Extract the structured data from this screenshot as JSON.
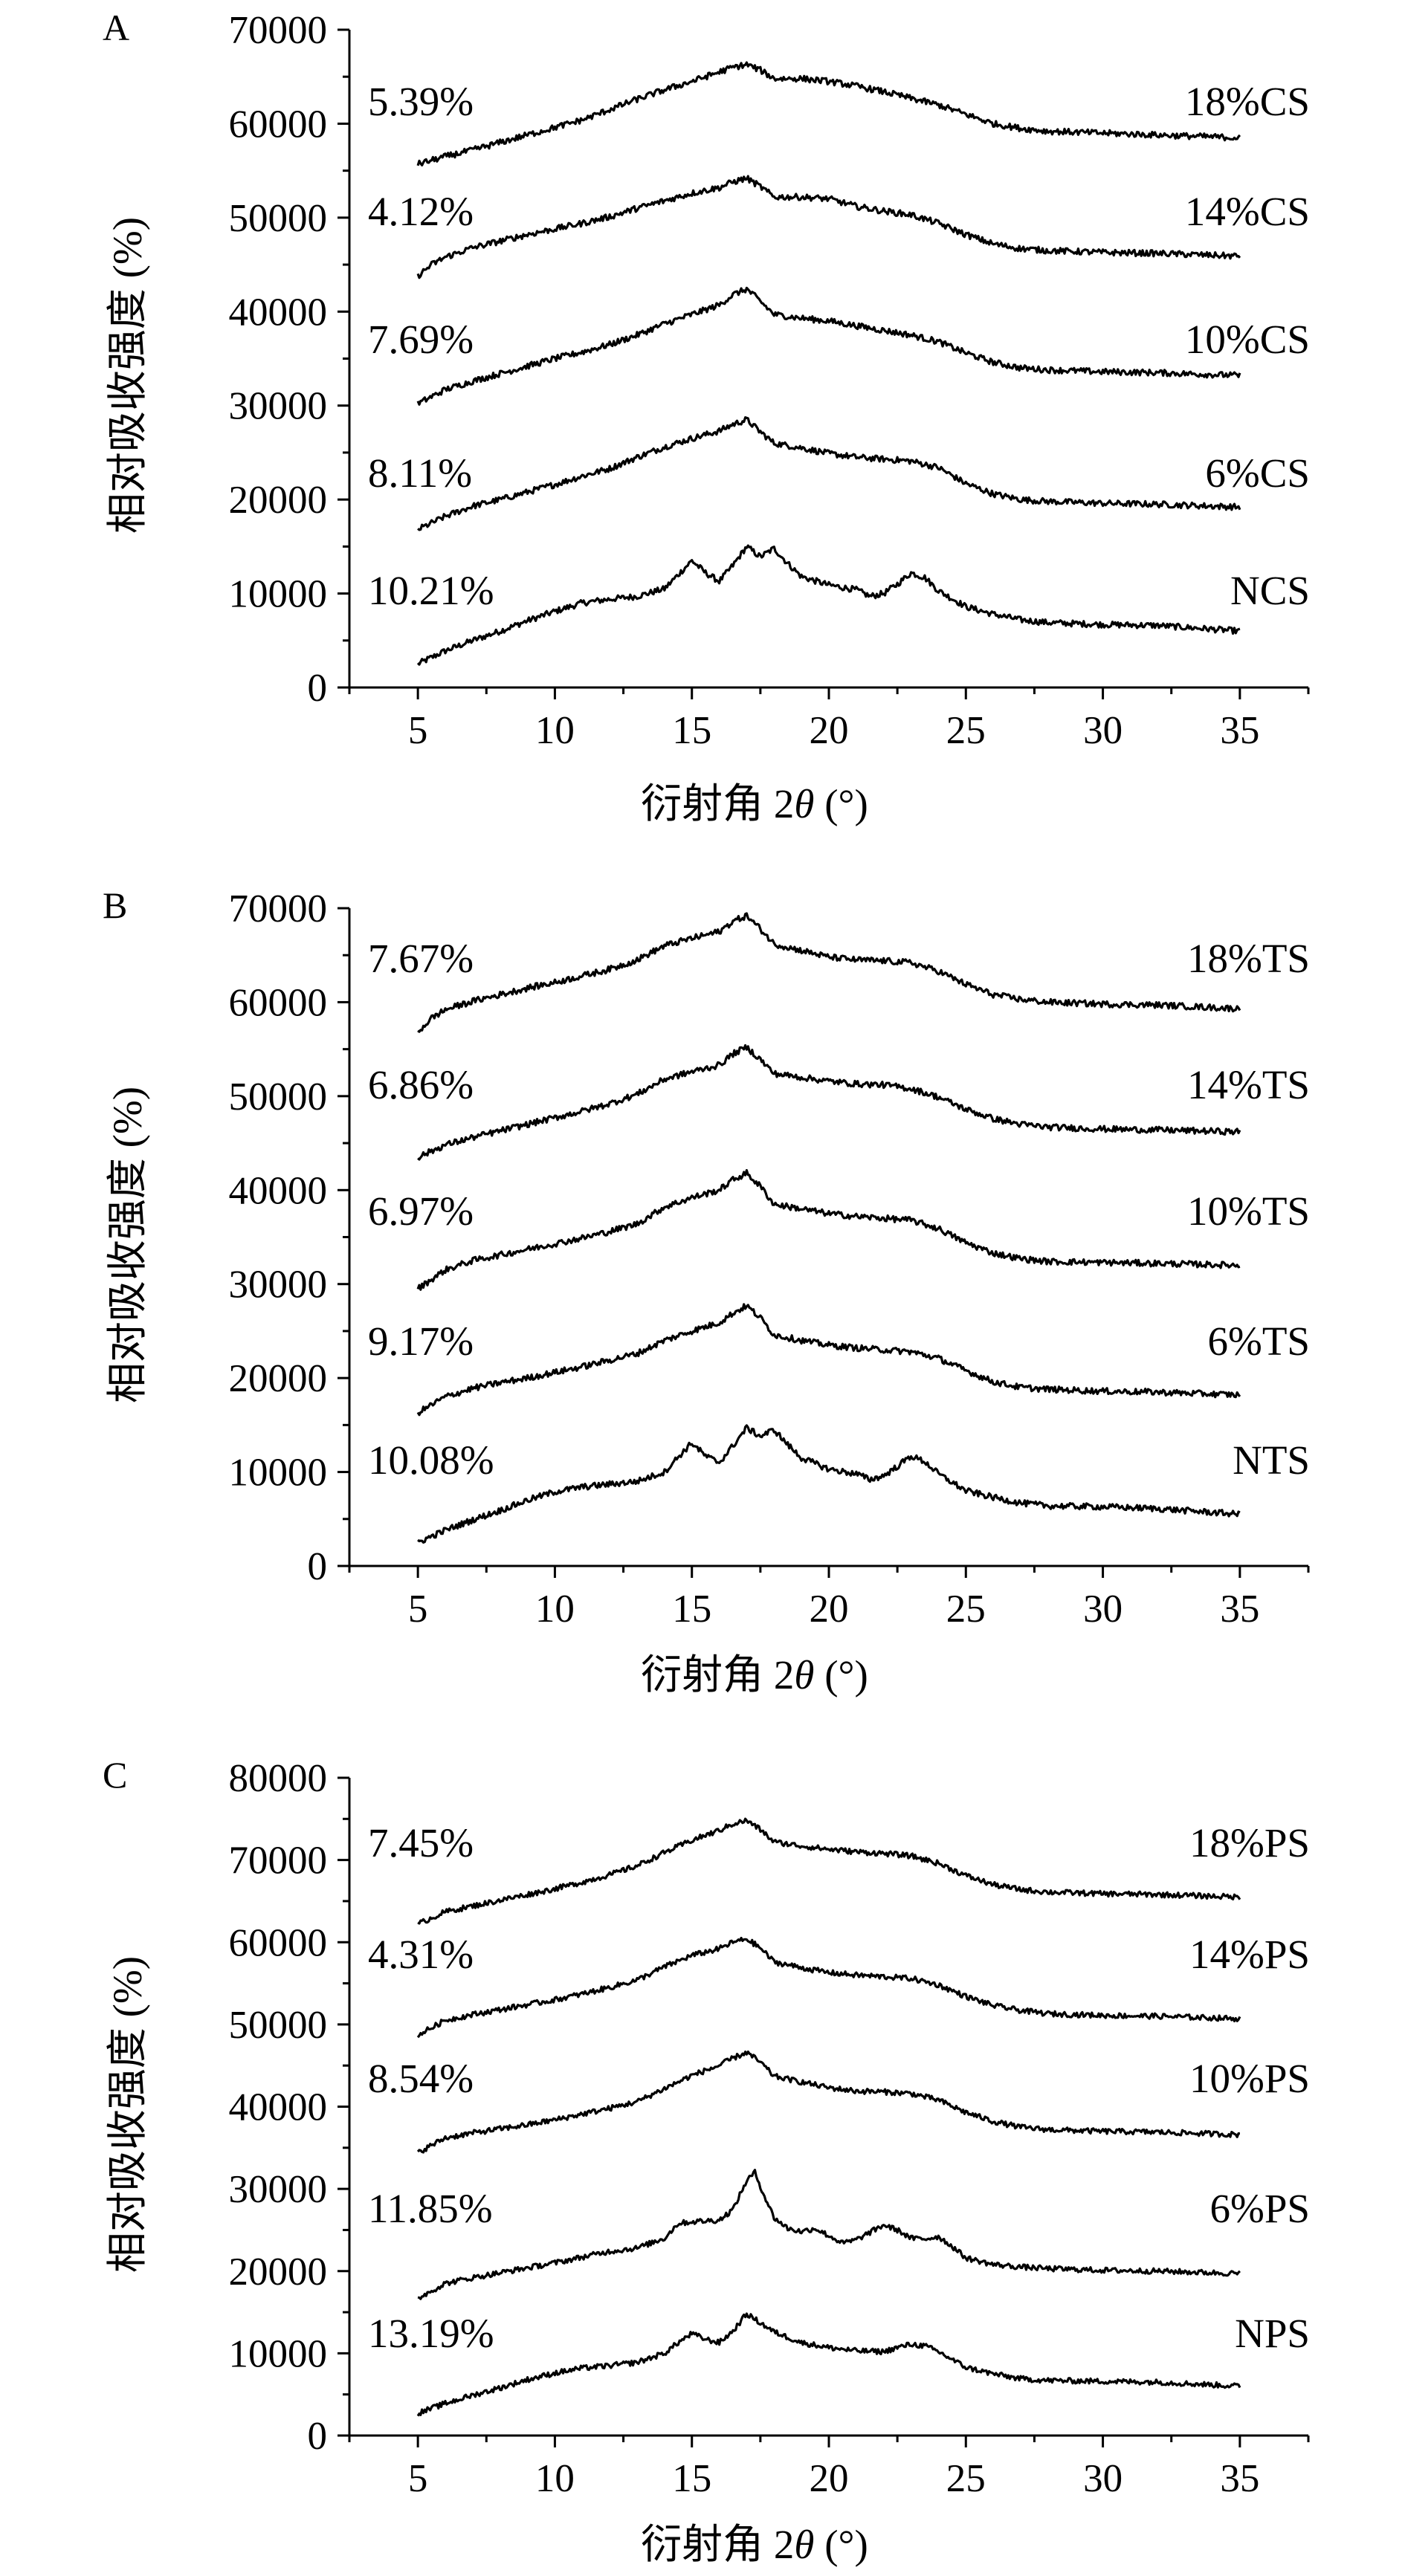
{
  "chart_data": [
    {
      "type": "line",
      "panel_label": "A",
      "xlabel": "衍射角 2θ (°)",
      "ylabel": "相对吸收强度 (%)",
      "xlim": [
        2.5,
        37.5
      ],
      "ylim": [
        0,
        70000
      ],
      "x_ticks": [
        5,
        10,
        15,
        20,
        25,
        30,
        35
      ],
      "y_ticks": [
        0,
        10000,
        20000,
        30000,
        40000,
        50000,
        60000,
        70000
      ],
      "grid": false,
      "series": [
        {
          "name": "NCS",
          "crystallinity": "10.21%",
          "x": [
            5,
            6,
            7,
            8,
            9,
            10,
            11,
            12,
            13,
            14,
            14.5,
            15,
            15.5,
            16,
            16.5,
            17,
            17.5,
            18,
            18.5,
            19,
            20,
            21,
            21.5,
            22,
            22.5,
            23,
            23.5,
            24,
            25,
            26,
            27,
            28,
            30,
            32,
            35
          ],
          "y": [
            2500,
            3900,
            5000,
            6000,
            7100,
            8100,
            9000,
            9400,
            9700,
            10500,
            12000,
            13500,
            12200,
            11300,
            13000,
            15000,
            13900,
            14800,
            13200,
            11800,
            10900,
            10400,
            9700,
            10000,
            11000,
            12200,
            11700,
            10300,
            8600,
            7800,
            7200,
            6900,
            6700,
            6600,
            6000
          ]
        },
        {
          "name": "6%CS",
          "crystallinity": "8.11%",
          "x": [
            5,
            6,
            7,
            8,
            9,
            10,
            11,
            12,
            13,
            14,
            15,
            16,
            16.5,
            17,
            17.5,
            18,
            19,
            20,
            21,
            22,
            23,
            24,
            25,
            26,
            27,
            28,
            30,
            32,
            35
          ],
          "y": [
            16800,
            18200,
            19300,
            20000,
            20800,
            21600,
            22500,
            23300,
            24500,
            25600,
            26500,
            27300,
            28000,
            28500,
            27200,
            26000,
            25500,
            24900,
            24500,
            24300,
            24100,
            23400,
            21700,
            20600,
            20000,
            19800,
            19600,
            19500,
            19200
          ]
        },
        {
          "name": "10%CS",
          "crystallinity": "7.69%",
          "x": [
            5,
            6,
            7,
            8,
            9,
            10,
            11,
            12,
            13,
            14,
            15,
            16,
            16.5,
            17,
            17.5,
            18,
            19,
            20,
            21,
            22,
            23,
            24,
            25,
            26,
            27,
            28,
            30,
            32,
            35
          ],
          "y": [
            30200,
            31700,
            32600,
            33400,
            34200,
            35000,
            35700,
            36500,
            37500,
            38700,
            39700,
            40700,
            41800,
            42400,
            41100,
            39700,
            39300,
            39000,
            38500,
            38000,
            37500,
            36800,
            35600,
            34600,
            34000,
            33800,
            33600,
            33500,
            33200
          ]
        },
        {
          "name": "14%CS",
          "crystallinity": "4.12%",
          "x": [
            5,
            5.5,
            6,
            7,
            8,
            9,
            10,
            11,
            12,
            13,
            14,
            15,
            16,
            16.5,
            17,
            17.5,
            18,
            19,
            20,
            21,
            22,
            23,
            24,
            25,
            26,
            27,
            28,
            30,
            32,
            35
          ],
          "y": [
            43800,
            45000,
            45800,
            46800,
            47500,
            48200,
            48800,
            49400,
            50100,
            51000,
            51800,
            52600,
            53200,
            53800,
            54200,
            53300,
            52200,
            52200,
            52000,
            51200,
            50700,
            50300,
            49400,
            48200,
            47200,
            46700,
            46500,
            46300,
            46200,
            45900
          ]
        },
        {
          "name": "18%CS",
          "crystallinity": "5.39%",
          "x": [
            5,
            6,
            7,
            8,
            9,
            10,
            11,
            12,
            13,
            14,
            15,
            16,
            16.5,
            17,
            17.5,
            18,
            19,
            20,
            21,
            22,
            23,
            24,
            25,
            26,
            27,
            28,
            30,
            32,
            35
          ],
          "y": [
            55700,
            56500,
            57200,
            58000,
            58800,
            59600,
            60400,
            61500,
            62600,
            63600,
            64500,
            65500,
            66000,
            66300,
            65700,
            64800,
            64800,
            64500,
            64000,
            63400,
            62700,
            62000,
            61000,
            60000,
            59500,
            59200,
            59000,
            58800,
            58500
          ]
        }
      ]
    },
    {
      "type": "line",
      "panel_label": "B",
      "xlabel": "衍射角 2θ (°)",
      "ylabel": "相对吸收强度 (%)",
      "xlim": [
        2.5,
        37.5
      ],
      "ylim": [
        0,
        70000
      ],
      "x_ticks": [
        5,
        10,
        15,
        20,
        25,
        30,
        35
      ],
      "y_ticks": [
        0,
        10000,
        20000,
        30000,
        40000,
        50000,
        60000,
        70000
      ],
      "grid": false,
      "series": [
        {
          "name": "NTS",
          "crystallinity": "10.08%",
          "x": [
            5,
            6,
            7,
            8,
            9,
            10,
            11,
            12,
            13,
            14,
            14.5,
            15,
            15.5,
            16,
            16.5,
            17,
            17.5,
            18,
            18.5,
            19,
            20,
            21,
            21.5,
            22,
            22.5,
            23,
            23.5,
            24,
            25,
            26,
            27,
            28,
            30,
            32,
            35
          ],
          "y": [
            2500,
            3800,
            4900,
            5900,
            7000,
            7900,
            8400,
            8700,
            9000,
            10000,
            11600,
            13100,
            11700,
            11000,
            12800,
            14700,
            13800,
            14500,
            12900,
            11500,
            10300,
            9800,
            9200,
            9600,
            10600,
            11700,
            11100,
            9800,
            8000,
            7300,
            6700,
            6400,
            6300,
            6100,
            5500
          ]
        },
        {
          "name": "6%TS",
          "crystallinity": "9.17%",
          "x": [
            5,
            6,
            7,
            8,
            9,
            10,
            11,
            12,
            13,
            14,
            15,
            16,
            16.5,
            17,
            17.5,
            18,
            19,
            20,
            21,
            22,
            23,
            24,
            25,
            26,
            27,
            28,
            30,
            32,
            35
          ],
          "y": [
            16300,
            18000,
            18900,
            19500,
            20000,
            20600,
            21200,
            21900,
            22600,
            24000,
            25000,
            25900,
            26900,
            27700,
            26400,
            24600,
            24000,
            23500,
            23200,
            23000,
            22800,
            22100,
            20800,
            19600,
            19000,
            18800,
            18600,
            18500,
            18200
          ]
        },
        {
          "name": "10%TS",
          "crystallinity": "6.97%",
          "x": [
            5,
            6,
            7,
            8,
            9,
            10,
            11,
            12,
            13,
            14,
            15,
            16,
            16.5,
            17,
            17.5,
            18,
            19,
            20,
            21,
            22,
            23,
            24,
            25,
            26,
            27,
            28,
            30,
            32,
            35
          ],
          "y": [
            29500,
            31500,
            32500,
            33100,
            33700,
            34300,
            34900,
            35600,
            36400,
            38200,
            39200,
            40000,
            41100,
            41800,
            40400,
            38500,
            38000,
            37500,
            37200,
            37000,
            36800,
            35900,
            34400,
            33300,
            32700,
            32400,
            32300,
            32200,
            32000
          ]
        },
        {
          "name": "14%TS",
          "crystallinity": "6.86%",
          "x": [
            5,
            6,
            7,
            8,
            9,
            10,
            11,
            12,
            13,
            14,
            15,
            16,
            16.5,
            17,
            17.5,
            18,
            19,
            20,
            21,
            22,
            23,
            24,
            25,
            26,
            27,
            28,
            30,
            32,
            35
          ],
          "y": [
            43500,
            44800,
            45600,
            46300,
            47000,
            47700,
            48400,
            49200,
            50200,
            51800,
            52600,
            53300,
            54500,
            55200,
            53900,
            52400,
            52000,
            51600,
            51300,
            51200,
            50800,
            49900,
            48600,
            47600,
            47000,
            46700,
            46500,
            46400,
            46200
          ]
        },
        {
          "name": "18%TS",
          "crystallinity": "7.67%",
          "x": [
            5,
            5.5,
            6,
            7,
            8,
            9,
            10,
            11,
            12,
            13,
            14,
            15,
            16,
            16.5,
            17,
            17.5,
            18,
            19,
            20,
            21,
            22,
            23,
            24,
            25,
            26,
            27,
            28,
            30,
            32,
            35
          ],
          "y": [
            56800,
            58300,
            59200,
            60100,
            60800,
            61500,
            62100,
            62800,
            63500,
            64500,
            66000,
            66800,
            67500,
            68600,
            69200,
            67800,
            66200,
            65500,
            64800,
            64500,
            64400,
            64200,
            63300,
            61900,
            60800,
            60300,
            60000,
            59800,
            59700,
            59300
          ]
        }
      ]
    },
    {
      "type": "line",
      "panel_label": "C",
      "xlabel": "衍射角 2θ (°)",
      "ylabel": "相对吸收强度 (%)",
      "xlim": [
        2.5,
        37.5
      ],
      "ylim": [
        0,
        80000
      ],
      "x_ticks": [
        5,
        10,
        15,
        20,
        25,
        30,
        35
      ],
      "y_ticks": [
        0,
        10000,
        20000,
        30000,
        40000,
        50000,
        60000,
        70000,
        80000
      ],
      "grid": false,
      "series": [
        {
          "name": "NPS",
          "crystallinity": "13.19%",
          "x": [
            5,
            6,
            7,
            8,
            9,
            10,
            11,
            12,
            13,
            14,
            14.5,
            15,
            15.5,
            16,
            16.5,
            17,
            17.5,
            18,
            19,
            20,
            21,
            22,
            22.5,
            23,
            23.5,
            24,
            25,
            26,
            27,
            28,
            30,
            32,
            35
          ],
          "y": [
            2700,
            3900,
            4900,
            5800,
            6800,
            7600,
            8200,
            8500,
            8900,
            10000,
            11300,
            12400,
            11700,
            11300,
            12700,
            14800,
            13700,
            12600,
            11300,
            10700,
            10300,
            10200,
            10700,
            11100,
            10900,
            10200,
            8300,
            7500,
            6900,
            6700,
            6600,
            6500,
            6000
          ]
        },
        {
          "name": "6%PS",
          "crystallinity": "11.85%",
          "x": [
            5,
            6,
            7,
            8,
            9,
            10,
            11,
            12,
            13,
            14,
            14.5,
            15,
            16,
            16.5,
            17,
            17.3,
            17.6,
            18,
            18.5,
            19,
            19.5,
            20,
            20.5,
            21,
            21.5,
            22,
            22.5,
            23,
            23.5,
            24,
            24.5,
            25,
            26,
            27,
            28,
            30,
            32,
            35
          ],
          "y": [
            16700,
            18500,
            19200,
            19800,
            20400,
            21000,
            21700,
            22400,
            22800,
            24000,
            25800,
            26000,
            26200,
            27500,
            31000,
            32000,
            29500,
            26500,
            25200,
            24800,
            25200,
            24300,
            23400,
            23800,
            24700,
            25600,
            25000,
            24000,
            23900,
            24200,
            23000,
            21600,
            20800,
            20500,
            20300,
            20100,
            20000,
            19700
          ]
        },
        {
          "name": "10%PS",
          "crystallinity": "8.54%",
          "x": [
            5,
            6,
            7,
            8,
            9,
            10,
            11,
            12,
            13,
            14,
            15,
            16,
            16.5,
            17,
            17.5,
            18,
            19,
            20,
            21,
            22,
            23,
            24,
            25,
            26,
            27,
            28,
            30,
            32,
            35
          ],
          "y": [
            34400,
            36200,
            36800,
            37300,
            37800,
            38400,
            39100,
            39800,
            40600,
            42200,
            43800,
            45000,
            45900,
            46600,
            45400,
            43700,
            43000,
            42300,
            41900,
            41800,
            41600,
            40800,
            39300,
            38200,
            37500,
            37200,
            37000,
            36900,
            36600
          ]
        },
        {
          "name": "14%PS",
          "crystallinity": "4.31%",
          "x": [
            5,
            6,
            7,
            8,
            9,
            10,
            11,
            12,
            13,
            14,
            15,
            16,
            16.5,
            17,
            17.5,
            18,
            19,
            20,
            21,
            22,
            23,
            24,
            25,
            26,
            27,
            28,
            30,
            32,
            35
          ],
          "y": [
            48700,
            50500,
            51200,
            51800,
            52400,
            53000,
            53700,
            54500,
            55400,
            57000,
            58400,
            59200,
            60000,
            60400,
            59300,
            57600,
            56900,
            56300,
            56000,
            55800,
            55600,
            54800,
            53400,
            52300,
            51700,
            51300,
            51100,
            51000,
            50700
          ]
        },
        {
          "name": "18%PS",
          "crystallinity": "7.45%",
          "x": [
            5,
            6,
            7,
            8,
            9,
            10,
            11,
            12,
            13,
            14,
            15,
            16,
            16.5,
            17,
            17.5,
            18,
            19,
            20,
            21,
            22,
            23,
            24,
            25,
            26,
            27,
            28,
            30,
            32,
            35
          ],
          "y": [
            62200,
            63700,
            64400,
            65100,
            65800,
            66500,
            67300,
            68200,
            69300,
            70900,
            72400,
            73600,
            74400,
            74800,
            73700,
            72200,
            71700,
            71300,
            71000,
            70800,
            70500,
            69600,
            68100,
            67000,
            66400,
            66100,
            65900,
            65800,
            65500
          ]
        }
      ]
    }
  ]
}
